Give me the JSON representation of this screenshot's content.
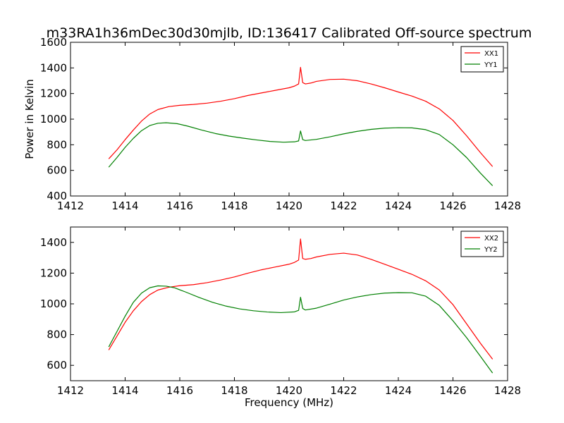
{
  "title": "m33RA1h36mDec30d30mjlb, ID:136417 Calibrated Off-source spectrum",
  "colors": {
    "XX": "#ff0000",
    "YY": "#008000",
    "frame": "#000000",
    "background": "#ffffff"
  },
  "chart_data": [
    {
      "type": "line",
      "panel": "top",
      "ylabel": "Power in Kelvin",
      "xlabel": "",
      "xlim": [
        1412,
        1428
      ],
      "ylim": [
        400,
        1600
      ],
      "xticks": [
        1412,
        1414,
        1416,
        1418,
        1420,
        1422,
        1424,
        1426,
        1428
      ],
      "yticks": [
        400,
        600,
        800,
        1000,
        1200,
        1400,
        1600
      ],
      "grid": false,
      "legend_position": "top-right",
      "series": [
        {
          "name": "XX1",
          "color": "#ff0000",
          "x": [
            1413.4,
            1413.7,
            1414.0,
            1414.3,
            1414.6,
            1414.9,
            1415.2,
            1415.6,
            1416.0,
            1416.5,
            1417.0,
            1417.5,
            1418.0,
            1418.5,
            1419.0,
            1419.5,
            1420.0,
            1420.2,
            1420.35,
            1420.42,
            1420.5,
            1420.6,
            1420.8,
            1421.0,
            1421.5,
            1422.0,
            1422.5,
            1423.0,
            1423.5,
            1424.0,
            1424.5,
            1425.0,
            1425.5,
            1426.0,
            1426.5,
            1427.0,
            1427.45
          ],
          "y": [
            690,
            760,
            840,
            915,
            985,
            1040,
            1075,
            1098,
            1108,
            1115,
            1125,
            1140,
            1160,
            1185,
            1205,
            1225,
            1245,
            1258,
            1275,
            1405,
            1285,
            1275,
            1282,
            1295,
            1310,
            1312,
            1300,
            1275,
            1245,
            1212,
            1180,
            1140,
            1080,
            990,
            870,
            740,
            630
          ]
        },
        {
          "name": "YY1",
          "color": "#008000",
          "x": [
            1413.4,
            1413.7,
            1414.0,
            1414.3,
            1414.6,
            1414.9,
            1415.2,
            1415.5,
            1415.9,
            1416.3,
            1416.8,
            1417.3,
            1417.8,
            1418.3,
            1418.8,
            1419.3,
            1419.8,
            1420.2,
            1420.35,
            1420.42,
            1420.5,
            1420.6,
            1421.0,
            1421.5,
            1422.0,
            1422.5,
            1423.0,
            1423.5,
            1424.0,
            1424.5,
            1425.0,
            1425.5,
            1426.0,
            1426.5,
            1427.0,
            1427.45
          ],
          "y": [
            625,
            700,
            780,
            850,
            910,
            950,
            968,
            972,
            965,
            945,
            915,
            888,
            868,
            852,
            838,
            826,
            820,
            823,
            830,
            908,
            840,
            833,
            842,
            862,
            885,
            905,
            920,
            930,
            933,
            932,
            918,
            880,
            800,
            700,
            580,
            480
          ]
        }
      ]
    },
    {
      "type": "line",
      "panel": "bottom",
      "xlabel": "Frequency (MHz)",
      "ylabel": "",
      "xlim": [
        1412,
        1428
      ],
      "ylim": [
        500,
        1500
      ],
      "xticks": [
        1412,
        1414,
        1416,
        1418,
        1420,
        1422,
        1424,
        1426,
        1428
      ],
      "yticks": [
        600,
        800,
        1000,
        1200,
        1400
      ],
      "grid": false,
      "legend_position": "top-right",
      "series": [
        {
          "name": "XX2",
          "color": "#ff0000",
          "x": [
            1413.4,
            1413.7,
            1414.0,
            1414.3,
            1414.6,
            1414.9,
            1415.2,
            1415.6,
            1416.0,
            1416.5,
            1417.0,
            1417.5,
            1418.0,
            1418.5,
            1419.0,
            1419.5,
            1420.0,
            1420.2,
            1420.35,
            1420.42,
            1420.5,
            1420.6,
            1420.8,
            1421.0,
            1421.5,
            1422.0,
            1422.5,
            1423.0,
            1423.5,
            1424.0,
            1424.5,
            1425.0,
            1425.5,
            1426.0,
            1426.5,
            1427.0,
            1427.45
          ],
          "y": [
            700,
            790,
            880,
            955,
            1015,
            1060,
            1090,
            1108,
            1118,
            1125,
            1138,
            1155,
            1175,
            1200,
            1222,
            1240,
            1258,
            1270,
            1285,
            1422,
            1295,
            1290,
            1295,
            1305,
            1322,
            1330,
            1318,
            1290,
            1258,
            1225,
            1192,
            1150,
            1090,
            995,
            870,
            745,
            640
          ]
        },
        {
          "name": "YY2",
          "color": "#008000",
          "x": [
            1413.4,
            1413.7,
            1414.0,
            1414.3,
            1414.6,
            1414.9,
            1415.2,
            1415.5,
            1415.8,
            1416.2,
            1416.7,
            1417.2,
            1417.7,
            1418.2,
            1418.7,
            1419.2,
            1419.7,
            1420.2,
            1420.35,
            1420.42,
            1420.5,
            1420.6,
            1421.0,
            1421.5,
            1422.0,
            1422.5,
            1423.0,
            1423.5,
            1424.0,
            1424.5,
            1425.0,
            1425.5,
            1426.0,
            1426.5,
            1427.0,
            1427.45
          ],
          "y": [
            720,
            820,
            920,
            1010,
            1070,
            1105,
            1117,
            1115,
            1105,
            1078,
            1042,
            1010,
            985,
            967,
            955,
            947,
            943,
            948,
            958,
            1043,
            970,
            960,
            972,
            998,
            1025,
            1045,
            1060,
            1070,
            1073,
            1072,
            1050,
            990,
            890,
            780,
            660,
            550
          ]
        }
      ]
    }
  ]
}
